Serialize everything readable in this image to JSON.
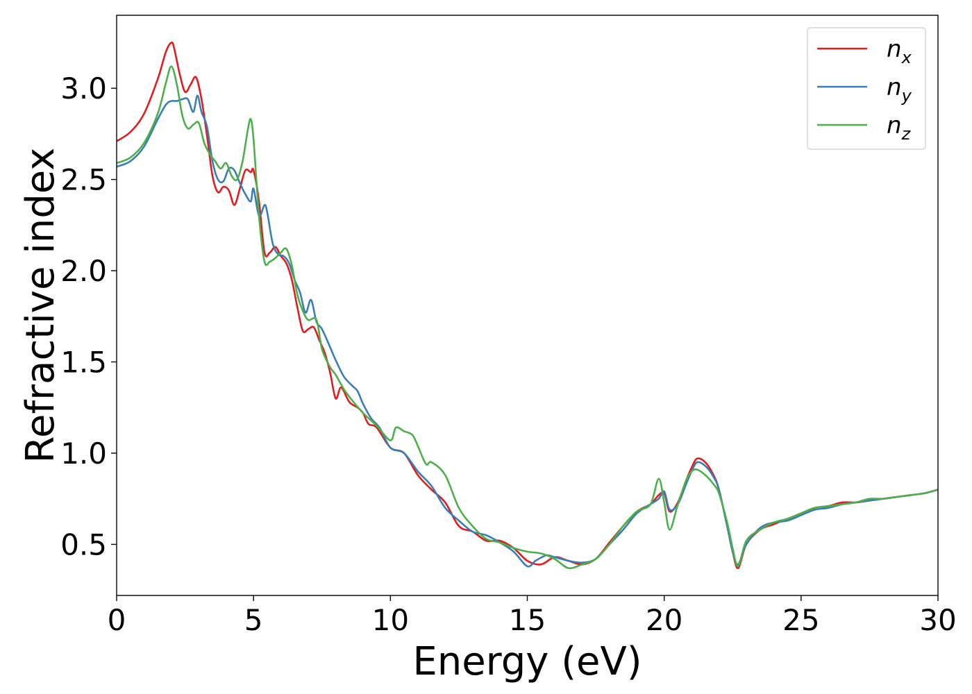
{
  "chart_data": {
    "type": "line",
    "title": "",
    "xlabel": "Energy (eV)",
    "ylabel": "Refractive index",
    "xlim": [
      0,
      30
    ],
    "ylim": [
      0.22,
      3.4
    ],
    "xticks": [
      0,
      5,
      10,
      15,
      20,
      25,
      30
    ],
    "xtick_labels": [
      "0",
      "5",
      "10",
      "15",
      "20",
      "25",
      "30"
    ],
    "yticks": [
      0.5,
      1.0,
      1.5,
      2.0,
      2.5,
      3.0
    ],
    "ytick_labels": [
      "0.5",
      "1.0",
      "1.5",
      "2.0",
      "2.5",
      "3.0"
    ],
    "grid": false,
    "legend_position": "top-right",
    "series": [
      {
        "name": "n",
        "subscript": "x",
        "color": "#e41a1c",
        "x": [
          0,
          0.5,
          1.0,
          1.5,
          1.8,
          2.0,
          2.1,
          2.3,
          2.5,
          2.7,
          2.9,
          3.1,
          3.3,
          3.5,
          3.7,
          3.9,
          4.1,
          4.3,
          4.5,
          4.7,
          4.9,
          5.0,
          5.2,
          5.4,
          5.6,
          5.8,
          6.0,
          6.2,
          6.4,
          6.6,
          6.8,
          7.0,
          7.2,
          7.4,
          7.6,
          7.8,
          8.0,
          8.2,
          8.5,
          8.8,
          9.0,
          9.2,
          9.5,
          10.0,
          10.5,
          11.0,
          11.5,
          12.0,
          12.5,
          13.0,
          13.5,
          14.0,
          14.5,
          15.0,
          15.5,
          16.0,
          16.5,
          17.0,
          17.5,
          18.0,
          18.5,
          19.0,
          19.5,
          19.8,
          20.0,
          20.2,
          20.5,
          20.8,
          21.0,
          21.2,
          21.5,
          21.8,
          22.0,
          22.3,
          22.5,
          22.7,
          23.0,
          23.5,
          24.0,
          24.5,
          25.0,
          25.5,
          26.0,
          26.5,
          27.0,
          27.5,
          28.0,
          28.5,
          29.0,
          29.5,
          30.0
        ],
        "y": [
          2.71,
          2.76,
          2.86,
          3.05,
          3.2,
          3.25,
          3.22,
          3.08,
          2.98,
          3.02,
          3.06,
          2.94,
          2.74,
          2.52,
          2.43,
          2.46,
          2.44,
          2.36,
          2.45,
          2.55,
          2.54,
          2.55,
          2.38,
          2.1,
          2.1,
          2.13,
          2.08,
          2.04,
          1.95,
          1.8,
          1.67,
          1.68,
          1.69,
          1.62,
          1.55,
          1.44,
          1.3,
          1.36,
          1.28,
          1.25,
          1.22,
          1.16,
          1.14,
          1.03,
          1.0,
          0.88,
          0.8,
          0.73,
          0.6,
          0.57,
          0.52,
          0.52,
          0.48,
          0.41,
          0.39,
          0.43,
          0.41,
          0.39,
          0.42,
          0.51,
          0.6,
          0.68,
          0.72,
          0.77,
          0.78,
          0.68,
          0.73,
          0.85,
          0.92,
          0.97,
          0.95,
          0.88,
          0.8,
          0.6,
          0.46,
          0.37,
          0.5,
          0.58,
          0.61,
          0.64,
          0.67,
          0.7,
          0.71,
          0.73,
          0.73,
          0.74,
          0.75,
          0.76,
          0.77,
          0.78,
          0.8
        ]
      },
      {
        "name": "n",
        "subscript": "y",
        "color": "#377eb8",
        "x": [
          0,
          0.5,
          1.0,
          1.5,
          1.8,
          2.0,
          2.2,
          2.4,
          2.6,
          2.8,
          2.95,
          3.1,
          3.3,
          3.5,
          3.7,
          3.9,
          4.1,
          4.3,
          4.5,
          4.7,
          4.9,
          5.0,
          5.2,
          5.4,
          5.5,
          5.7,
          5.9,
          6.1,
          6.3,
          6.5,
          6.7,
          6.9,
          7.1,
          7.3,
          7.5,
          7.8,
          8.0,
          8.3,
          8.6,
          8.8,
          9.0,
          9.3,
          9.6,
          10.0,
          10.5,
          11.0,
          11.5,
          12.0,
          12.5,
          13.0,
          13.5,
          14.0,
          14.5,
          15.0,
          15.3,
          15.7,
          16.0,
          16.5,
          17.0,
          17.5,
          18.0,
          18.5,
          19.0,
          19.5,
          19.8,
          20.0,
          20.2,
          20.5,
          20.8,
          21.0,
          21.2,
          21.5,
          21.8,
          22.0,
          22.3,
          22.5,
          22.7,
          23.0,
          23.5,
          24.0,
          24.5,
          25.0,
          25.5,
          26.0,
          26.5,
          27.0,
          27.5,
          28.0,
          28.5,
          29.0,
          29.5,
          30.0
        ],
        "y": [
          2.57,
          2.6,
          2.68,
          2.83,
          2.91,
          2.93,
          2.93,
          2.94,
          2.94,
          2.87,
          2.96,
          2.87,
          2.79,
          2.6,
          2.5,
          2.49,
          2.56,
          2.55,
          2.48,
          2.42,
          2.38,
          2.45,
          2.3,
          2.36,
          2.32,
          2.15,
          2.09,
          2.08,
          2.04,
          1.95,
          1.88,
          1.77,
          1.84,
          1.72,
          1.68,
          1.58,
          1.51,
          1.42,
          1.37,
          1.34,
          1.27,
          1.19,
          1.14,
          1.03,
          1.0,
          0.9,
          0.82,
          0.7,
          0.63,
          0.57,
          0.55,
          0.51,
          0.46,
          0.38,
          0.41,
          0.44,
          0.43,
          0.41,
          0.4,
          0.42,
          0.5,
          0.58,
          0.67,
          0.72,
          0.75,
          0.79,
          0.69,
          0.72,
          0.83,
          0.9,
          0.95,
          0.93,
          0.87,
          0.8,
          0.6,
          0.46,
          0.39,
          0.5,
          0.59,
          0.62,
          0.63,
          0.66,
          0.69,
          0.7,
          0.72,
          0.73,
          0.74,
          0.75,
          0.76,
          0.77,
          0.78,
          0.8
        ]
      },
      {
        "name": "n",
        "subscript": "z",
        "color": "#4daf4a",
        "x": [
          0,
          0.5,
          1.0,
          1.5,
          1.8,
          2.0,
          2.2,
          2.4,
          2.6,
          2.8,
          3.0,
          3.2,
          3.4,
          3.6,
          3.8,
          4.0,
          4.2,
          4.4,
          4.6,
          4.8,
          4.9,
          5.0,
          5.2,
          5.4,
          5.6,
          5.8,
          6.0,
          6.2,
          6.4,
          6.6,
          6.8,
          7.0,
          7.3,
          7.5,
          7.8,
          8.0,
          8.3,
          8.6,
          9.0,
          9.5,
          10.0,
          10.2,
          10.5,
          10.8,
          11.0,
          11.3,
          11.5,
          12.0,
          12.5,
          13.0,
          13.5,
          14.0,
          14.5,
          15.0,
          15.5,
          16.0,
          16.5,
          17.0,
          17.5,
          18.0,
          18.5,
          19.0,
          19.5,
          19.8,
          20.0,
          20.2,
          20.5,
          20.8,
          21.0,
          21.2,
          21.5,
          21.8,
          22.0,
          22.3,
          22.5,
          22.7,
          23.0,
          23.5,
          24.0,
          24.5,
          25.0,
          25.5,
          26.0,
          26.5,
          27.0,
          27.5,
          28.0,
          28.5,
          29.0,
          29.5,
          30.0
        ],
        "y": [
          2.59,
          2.62,
          2.7,
          2.86,
          3.03,
          3.12,
          3.02,
          2.85,
          2.78,
          2.8,
          2.81,
          2.7,
          2.64,
          2.6,
          2.56,
          2.59,
          2.52,
          2.5,
          2.6,
          2.78,
          2.83,
          2.72,
          2.3,
          2.05,
          2.05,
          2.07,
          2.1,
          2.12,
          2.03,
          1.87,
          1.78,
          1.73,
          1.73,
          1.57,
          1.47,
          1.43,
          1.35,
          1.29,
          1.22,
          1.15,
          1.07,
          1.14,
          1.12,
          1.1,
          1.04,
          0.94,
          0.95,
          0.88,
          0.7,
          0.6,
          0.53,
          0.51,
          0.48,
          0.46,
          0.45,
          0.42,
          0.37,
          0.39,
          0.42,
          0.5,
          0.6,
          0.68,
          0.72,
          0.86,
          0.73,
          0.58,
          0.72,
          0.85,
          0.9,
          0.91,
          0.88,
          0.83,
          0.78,
          0.62,
          0.48,
          0.38,
          0.52,
          0.58,
          0.62,
          0.64,
          0.67,
          0.7,
          0.71,
          0.72,
          0.73,
          0.75,
          0.75,
          0.76,
          0.77,
          0.78,
          0.8
        ]
      }
    ]
  }
}
